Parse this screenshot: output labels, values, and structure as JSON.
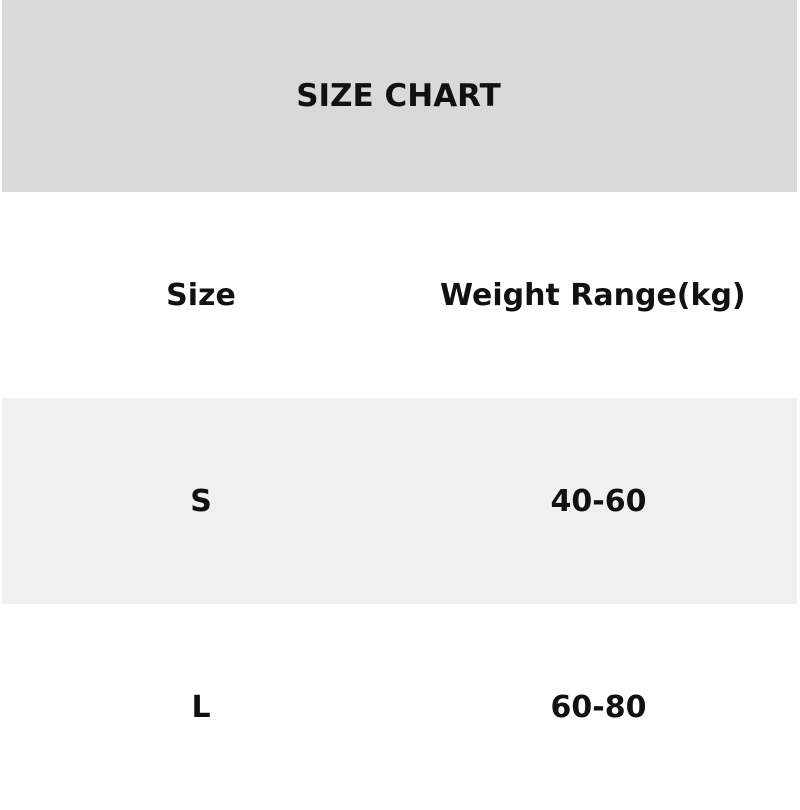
{
  "title": "SIZE CHART",
  "table": {
    "headers": [
      "Size",
      "Weight Range(kg)"
    ],
    "rows": [
      [
        "S",
        "40-60"
      ],
      [
        "L",
        "60-80"
      ]
    ]
  },
  "colors": {
    "title_background": "#d9d9d9",
    "striped_row_background": "#f0f0f0",
    "text": "#111111"
  }
}
